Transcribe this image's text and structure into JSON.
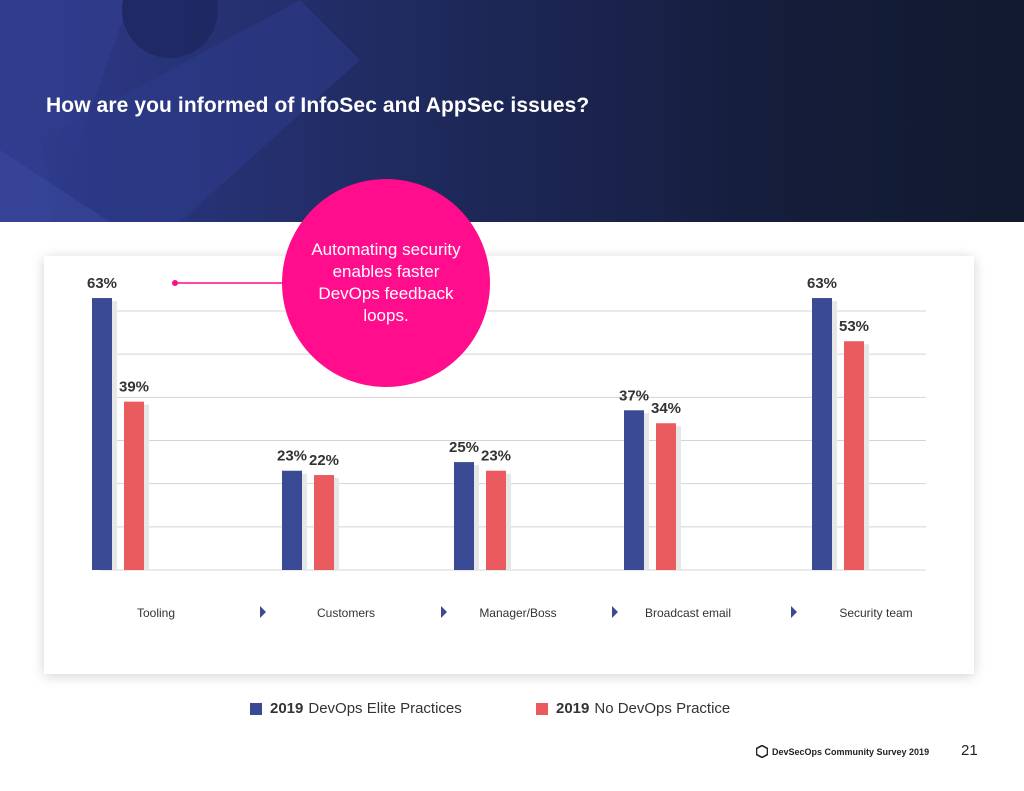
{
  "header": {
    "title": "How are you informed of InfoSec and AppSec issues?"
  },
  "chart_data": {
    "type": "bar",
    "title": "How are you informed of InfoSec and AppSec issues?",
    "categories": [
      "Tooling",
      "Customers",
      "Manager/Boss",
      "Broadcast email",
      "Security team"
    ],
    "series": [
      {
        "name": "2019 DevOps Elite Practices",
        "color": "#3a4a94",
        "values": [
          63,
          23,
          25,
          37,
          63
        ]
      },
      {
        "name": "2019 No DevOps Practice",
        "color": "#e95b5e",
        "values": [
          39,
          22,
          23,
          34,
          53
        ]
      }
    ],
    "value_suffix": "%",
    "ylim": [
      0,
      60
    ],
    "grid": true,
    "xlabel": "",
    "ylabel": ""
  },
  "callout": {
    "text": "Automating security enables faster DevOps feedback loops.",
    "color": "#ff0d8c",
    "points_to_category": "Tooling"
  },
  "legend": {
    "elite": {
      "year": "2019",
      "label": "DevOps Elite Practices"
    },
    "none": {
      "year": "2019",
      "label": "No DevOps Practice"
    }
  },
  "footer": {
    "brand": "DevSecOps Community Survey 2019",
    "page_number": "21"
  }
}
